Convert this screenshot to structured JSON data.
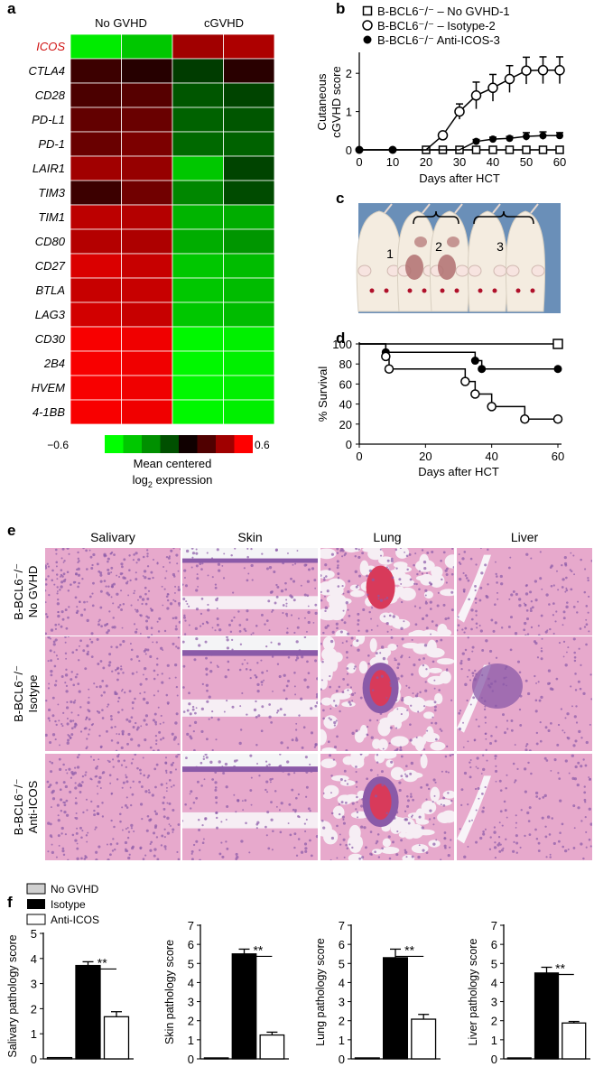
{
  "panels": {
    "a": "a",
    "b": "b",
    "c": "c",
    "d": "d",
    "e": "e",
    "f": "f"
  },
  "heatmap": {
    "col_labels": [
      "No GVHD",
      "cGVHD"
    ],
    "highlight_color": "#d01010",
    "genes": [
      "ICOS",
      "CTLA4",
      "CD28",
      "PD-L1",
      "PD-1",
      "LAIR1",
      "TIM3",
      "TIM1",
      "CD80",
      "CD27",
      "BTLA",
      "LAG3",
      "CD30",
      "2B4",
      "HVEM",
      "4-1BB"
    ],
    "values": [
      [
        -0.55,
        -0.45,
        0.35,
        0.38
      ],
      [
        0.08,
        0.02,
        -0.08,
        0.03
      ],
      [
        0.12,
        0.15,
        -0.15,
        -0.1
      ],
      [
        0.18,
        0.2,
        -0.18,
        -0.15
      ],
      [
        0.2,
        0.25,
        -0.2,
        -0.18
      ],
      [
        0.35,
        0.32,
        -0.45,
        -0.1
      ],
      [
        0.08,
        0.22,
        -0.28,
        -0.12
      ],
      [
        0.42,
        0.4,
        -0.4,
        -0.38
      ],
      [
        0.4,
        0.38,
        -0.38,
        -0.32
      ],
      [
        0.5,
        0.45,
        -0.45,
        -0.42
      ],
      [
        0.45,
        0.45,
        -0.45,
        -0.42
      ],
      [
        0.48,
        0.45,
        -0.45,
        -0.42
      ],
      [
        0.58,
        0.56,
        -0.58,
        -0.56
      ],
      [
        0.58,
        0.56,
        -0.58,
        -0.56
      ],
      [
        0.58,
        0.56,
        -0.58,
        -0.56
      ],
      [
        0.58,
        0.56,
        -0.58,
        -0.56
      ]
    ],
    "scale": {
      "min_label": "−0.6",
      "max_label": "0.6",
      "colors": [
        "#00ff00",
        "#00c800",
        "#009000",
        "#005000",
        "#100000",
        "#500000",
        "#a00000",
        "#ff0000"
      ],
      "label_line1": "Mean centered",
      "label_line2_base": "log",
      "label_line2_sub": "2",
      "label_line2_rest": " expression"
    }
  },
  "chart_data": [
    {
      "type": "line",
      "panel": "b",
      "xlabel": "Days after HCT",
      "ylabel": [
        "Cutaneous",
        "cGVHD score"
      ],
      "xlim": [
        0,
        60
      ],
      "ylim": [
        0,
        2.5
      ],
      "xticks": [
        0,
        10,
        20,
        30,
        40,
        50,
        60
      ],
      "yticks": [
        0,
        1,
        2
      ],
      "legend": [
        "B-BCL6⁻/⁻ – No GVHD-1",
        "B-BCL6⁻/⁻ – Isotype-2",
        "B-BCL6⁻/⁻ Anti-ICOS-3"
      ],
      "series": [
        {
          "marker": "open-square",
          "x": [
            0,
            10,
            20,
            25,
            30,
            35,
            40,
            45,
            50,
            55,
            60
          ],
          "y": [
            0,
            0,
            0,
            0,
            0,
            0,
            0,
            0,
            0,
            0,
            0
          ],
          "err": [
            0,
            0,
            0,
            0,
            0,
            0,
            0,
            0,
            0,
            0,
            0
          ]
        },
        {
          "marker": "open-circle",
          "x": [
            0,
            10,
            20,
            25,
            30,
            35,
            40,
            45,
            50,
            55,
            60
          ],
          "y": [
            0,
            0,
            0,
            0.38,
            1.0,
            1.42,
            1.62,
            1.85,
            2.07,
            2.08,
            2.08
          ],
          "err": [
            0,
            0,
            0,
            0.05,
            0.2,
            0.35,
            0.35,
            0.35,
            0.35,
            0.35,
            0.35
          ]
        },
        {
          "marker": "filled-circle",
          "x": [
            0,
            10,
            20,
            25,
            30,
            35,
            40,
            45,
            50,
            55,
            60
          ],
          "y": [
            0,
            0,
            0,
            0,
            0,
            0.22,
            0.28,
            0.3,
            0.35,
            0.37,
            0.37
          ],
          "err": [
            0,
            0,
            0,
            0,
            0,
            0.05,
            0.05,
            0.05,
            0.1,
            0.1,
            0.08
          ]
        }
      ]
    },
    {
      "type": "line",
      "panel": "d",
      "step": true,
      "xlabel": "Days after HCT",
      "ylabel": [
        "% Survival"
      ],
      "xlim": [
        0,
        60
      ],
      "ylim": [
        0,
        100
      ],
      "xticks": [
        0,
        20,
        40,
        60
      ],
      "yticks": [
        0,
        20,
        40,
        60,
        80,
        100
      ],
      "series": [
        {
          "marker": "open-square",
          "x": [
            0,
            60
          ],
          "y": [
            100,
            100
          ],
          "marks": [
            [
              60,
              100
            ]
          ]
        },
        {
          "marker": "filled-circle",
          "x": [
            0,
            8,
            35,
            37,
            60
          ],
          "y": [
            100,
            91.7,
            83.3,
            75,
            75
          ],
          "marks": [
            [
              8,
              91.7
            ],
            [
              35,
              83.3
            ],
            [
              37,
              75
            ],
            [
              60,
              75
            ]
          ]
        },
        {
          "marker": "open-circle",
          "x": [
            0,
            8,
            9,
            32,
            35,
            40,
            50,
            60
          ],
          "y": [
            100,
            87.5,
            75,
            62.5,
            50,
            37.5,
            25,
            25
          ],
          "marks": [
            [
              8,
              87.5
            ],
            [
              9,
              75
            ],
            [
              32,
              62.5
            ],
            [
              35,
              50
            ],
            [
              40,
              37.5
            ],
            [
              50,
              25
            ],
            [
              60,
              25
            ]
          ]
        }
      ]
    },
    {
      "type": "bar",
      "panel": "f",
      "ylabel": "Salivary pathology score",
      "ylim": [
        0,
        5
      ],
      "yticks": [
        0,
        1,
        2,
        3,
        4,
        5
      ],
      "categories": [
        "No GVHD",
        "Isotype",
        "Anti-ICOS"
      ],
      "values": [
        0.05,
        3.72,
        1.68
      ],
      "err": [
        0.03,
        0.15,
        0.2
      ],
      "annotation": "**"
    },
    {
      "type": "bar",
      "panel": "f",
      "ylabel": "Skin pathology score",
      "ylim": [
        0,
        7
      ],
      "yticks": [
        0,
        1,
        2,
        3,
        4,
        5,
        6,
        7
      ],
      "categories": [
        "No GVHD",
        "Isotype",
        "Anti-ICOS"
      ],
      "values": [
        0.05,
        5.5,
        1.25
      ],
      "err": [
        0.03,
        0.25,
        0.15
      ],
      "annotation": "**"
    },
    {
      "type": "bar",
      "panel": "f",
      "ylabel": "Lung pathology score",
      "ylim": [
        0,
        7
      ],
      "yticks": [
        0,
        1,
        2,
        3,
        4,
        5,
        6,
        7
      ],
      "categories": [
        "No GVHD",
        "Isotype",
        "Anti-ICOS"
      ],
      "values": [
        0.05,
        5.3,
        2.08
      ],
      "err": [
        0.03,
        0.45,
        0.25
      ],
      "annotation": "**"
    },
    {
      "type": "bar",
      "panel": "f",
      "ylabel": "Liver pathology score",
      "ylim": [
        0,
        7
      ],
      "yticks": [
        0,
        1,
        2,
        3,
        4,
        5,
        6,
        7
      ],
      "categories": [
        "No GVHD",
        "Isotype",
        "Anti-ICOS"
      ],
      "values": [
        0.05,
        4.5,
        1.88
      ],
      "err": [
        0.03,
        0.3,
        0.08
      ],
      "annotation": "**"
    }
  ],
  "bar_legend": [
    "No GVHD",
    "Isotype",
    "Anti-ICOS"
  ],
  "photo": {
    "labels": [
      "1",
      "2",
      "3"
    ],
    "colors": {
      "bg": "#6a8fb8",
      "mouse": "#f4ece0",
      "lesion": "#b07070"
    }
  },
  "histology": {
    "columns": [
      "Salivary",
      "Skin",
      "Lung",
      "Liver"
    ],
    "rows": [
      {
        "line1": "B-BCL6⁻/⁻",
        "line2": "No GVHD"
      },
      {
        "line1": "B-BCL6⁻/⁻",
        "line2": "Isotype"
      },
      {
        "line1": "B-BCL6⁻/⁻",
        "line2": "Anti-ICOS"
      }
    ],
    "tissue_colors": {
      "pink": "#e7a9cc",
      "purple": "#8a5aa8",
      "white": "#f6eef4"
    }
  }
}
